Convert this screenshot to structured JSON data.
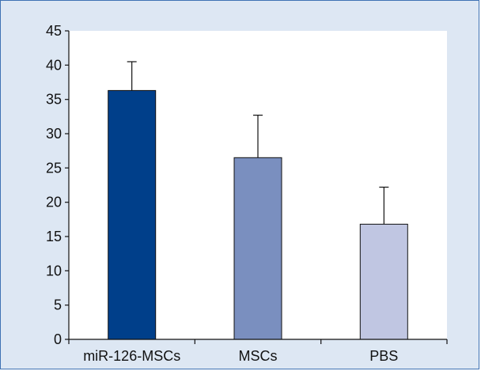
{
  "chart_data": {
    "type": "bar",
    "title": "",
    "xlabel": "",
    "ylabel": "",
    "categories": [
      "miR-126-MSCs",
      "MSCs",
      "PBS"
    ],
    "values": [
      36.3,
      26.5,
      16.8
    ],
    "error_upper": [
      40.5,
      32.7,
      22.2
    ],
    "ylim": [
      0,
      45
    ],
    "yticks": [
      0,
      5,
      10,
      15,
      20,
      25,
      30,
      35,
      40,
      45
    ],
    "bar_colors": [
      "#003f8a",
      "#7a8fbf",
      "#c0c6e2"
    ],
    "grid": false,
    "legend": "none"
  },
  "colors": {
    "frame_border": "#3f72b3",
    "frame_background": "#dde7f3",
    "plot_background": "#ffffff",
    "axis": "#111111"
  }
}
